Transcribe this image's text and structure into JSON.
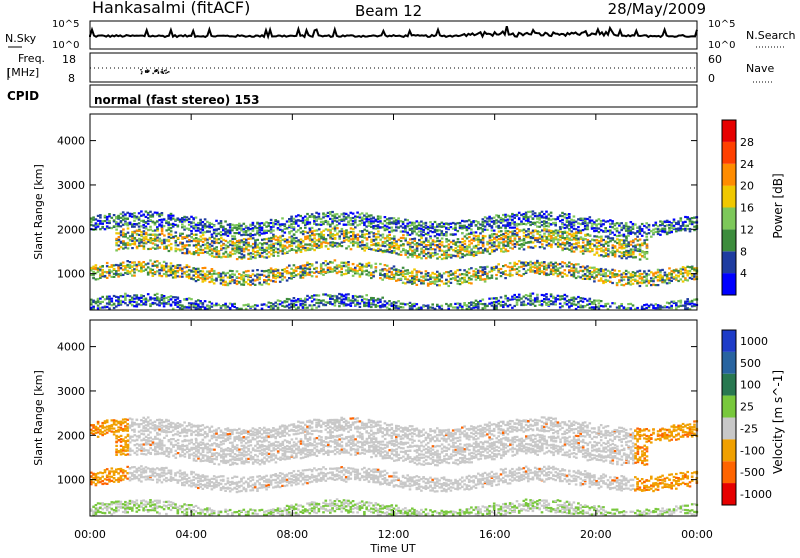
{
  "header": {
    "title": "Hankasalmi (fitACF)",
    "beam": "Beam 12",
    "date": "28/May/2009"
  },
  "noise_panel": {
    "left_label": "N.Sky",
    "right_label": "N.Search",
    "left_ticks": [
      "10^5",
      "10^0"
    ],
    "right_ticks": [
      "10^5",
      "10^0"
    ]
  },
  "freq_panel": {
    "left_label_1": "Freq.",
    "left_label_2": "[MHz]",
    "left_ticks": [
      "18",
      "8"
    ],
    "right_label": "Nave",
    "right_ticks": [
      "60",
      "0"
    ]
  },
  "cpid": {
    "label": "CPID",
    "text": "normal (fast stereo) 153"
  },
  "x_axis": {
    "label": "Time UT",
    "ticks": [
      "00:00",
      "04:00",
      "08:00",
      "12:00",
      "16:00",
      "20:00",
      "00:00"
    ]
  },
  "chart_data": [
    {
      "type": "heatmap",
      "title": "",
      "xlabel": "Time UT",
      "ylabel": "Slant Range [km]",
      "x_ticks": [
        "00:00",
        "04:00",
        "08:00",
        "12:00",
        "16:00",
        "20:00",
        "00:00"
      ],
      "y_ticks": [
        "1000",
        "2000",
        "3000",
        "4000"
      ],
      "xlim_hours": [
        0,
        24
      ],
      "ylim_km": [
        180,
        4600
      ],
      "colorbar": {
        "label": "Power [dB]",
        "ticks": [
          "4",
          "8",
          "12",
          "16",
          "20",
          "24",
          "28"
        ],
        "colors": [
          "#0000ff",
          "#1e3ca0",
          "#3c8c3c",
          "#7dc85a",
          "#f0c800",
          "#ff8c00",
          "#ff4000",
          "#e60000"
        ]
      },
      "bands": [
        {
          "name_hint": "band near 2200 km",
          "start_hour": 0.0,
          "end_hour": 24.0,
          "range_km": [
            2000,
            2300
          ],
          "level": "low"
        },
        {
          "name_hint": "band near 1700 km",
          "start_hour": 1.0,
          "end_hour": 22.0,
          "range_km": [
            1500,
            1950
          ],
          "level": "medium"
        },
        {
          "name_hint": "band near 1100 km",
          "start_hour": 0.0,
          "end_hour": 24.0,
          "range_km": [
            900,
            1200
          ],
          "level": "medium"
        },
        {
          "name_hint": "near range",
          "start_hour": 0.0,
          "end_hour": 24.0,
          "range_km": [
            200,
            450
          ],
          "level": "low"
        }
      ]
    },
    {
      "type": "heatmap",
      "title": "",
      "xlabel": "Time UT",
      "ylabel": "Slant Range [km]",
      "x_ticks": [
        "00:00",
        "04:00",
        "08:00",
        "12:00",
        "16:00",
        "20:00",
        "00:00"
      ],
      "y_ticks": [
        "1000",
        "2000",
        "3000",
        "4000"
      ],
      "xlim_hours": [
        0,
        24
      ],
      "ylim_km": [
        180,
        4600
      ],
      "colorbar": {
        "label": "Velocity [m s^-1]",
        "ticks": [
          "1000",
          "500",
          "100",
          "25",
          "-25",
          "-100",
          "-500",
          "-1000"
        ],
        "colors": [
          "#1e3cc8",
          "#2864a0",
          "#287850",
          "#78c83c",
          "#c8c8c8",
          "#f0a000",
          "#ff6400",
          "#e60000"
        ]
      }
    }
  ]
}
